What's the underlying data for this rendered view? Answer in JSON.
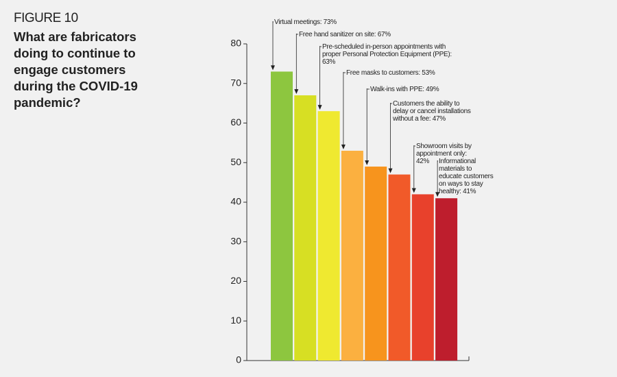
{
  "chart_data": {
    "type": "bar",
    "figure_label": "FIGURE 10",
    "title": "What are fabricators doing to continue to engage customers during the COVID-19 pandemic?",
    "categories": [
      null,
      null,
      null,
      null,
      null,
      null,
      null,
      null
    ],
    "values": [
      73,
      67,
      63,
      53,
      49,
      47,
      42,
      41
    ],
    "value_labels": [
      "Virtual meetings: 73%",
      "Free hand sanitizer on site: 67%",
      "Pre-scheduled in-person appointments with proper Personal Protection Equipment (PPE): 63%",
      "Free masks to customers: 53%",
      "Walk-ins with PPE: 49%",
      "Customers the ability to delay or cancel installations without a fee: 47%",
      "Showroom visits by appointment only: 42%",
      "Informational materials to educate customers on ways to stay healthy: 41%"
    ],
    "colors": [
      "#8dc63f",
      "#d7df23",
      "#efe930",
      "#fbb040",
      "#f7941d",
      "#f15a29",
      "#e8412c",
      "#be1e2d"
    ],
    "ylim": [
      0,
      80
    ],
    "yticks": [
      0,
      10,
      20,
      30,
      40,
      50,
      60,
      70,
      80
    ]
  }
}
